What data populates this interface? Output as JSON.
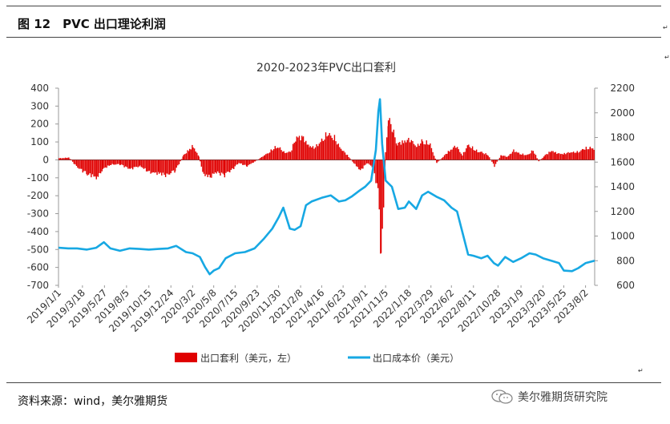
{
  "header": {
    "title": "图 12　PVC 出口理论利润"
  },
  "footer": {
    "source": "资料来源：wind，美尔雅期货",
    "watermark": "美尔雅期货研究院"
  },
  "chart_data": {
    "type": "bar+line",
    "title": "2020-2023年PVC出口套利",
    "left_axis": {
      "min": -700,
      "max": 400,
      "ticks": [
        400,
        300,
        200,
        100,
        0,
        -100,
        -200,
        -300,
        -400,
        -500,
        -600,
        -700
      ]
    },
    "right_axis": {
      "min": 600,
      "max": 2200,
      "ticks": [
        2200,
        2000,
        1800,
        1600,
        1400,
        1200,
        1000,
        800,
        600
      ]
    },
    "x_start": "2019/1/1",
    "x_end": "2023/8/31",
    "x_tick_labels": [
      "2019/1/1",
      "2019/3/18",
      "2019/5/27",
      "2019/8/5",
      "2019/10/15",
      "2019/12/24",
      "2020/3/2",
      "2020/5/8",
      "2020/7/15",
      "2020/9/23",
      "2020/11/30",
      "2021/2/8",
      "2021/4/16",
      "2021/6/23",
      "2021/9/1",
      "2021/11/5",
      "2022/1/18",
      "2022/3/29",
      "2022/6/2",
      "2022/8/11",
      "2022/10/28",
      "2023/1/9",
      "2023/3/20",
      "2023/5/25",
      "2023/8/2"
    ],
    "series": [
      {
        "name": "出口套利（美元，左）",
        "kind": "bar",
        "axis": "left",
        "color": "#e00000",
        "points": [
          [
            "2019/1/1",
            10
          ],
          [
            "2019/2/1",
            15
          ],
          [
            "2019/3/1",
            -50
          ],
          [
            "2019/4/1",
            -90
          ],
          [
            "2019/5/1",
            -120
          ],
          [
            "2019/5/20",
            -60
          ],
          [
            "2019/6/15",
            -30
          ],
          [
            "2019/7/15",
            -30
          ],
          [
            "2019/8/15",
            -60
          ],
          [
            "2019/9/15",
            -40
          ],
          [
            "2019/10/15",
            -80
          ],
          [
            "2019/11/15",
            -90
          ],
          [
            "2019/12/10",
            -100
          ],
          [
            "2020/1/5",
            -70
          ],
          [
            "2020/2/1",
            30
          ],
          [
            "2020/2/20",
            70
          ],
          [
            "2020/3/2",
            90
          ],
          [
            "2020/3/20",
            20
          ],
          [
            "2020/4/5",
            -100
          ],
          [
            "2020/4/25",
            -110
          ],
          [
            "2020/5/15",
            -80
          ],
          [
            "2020/6/10",
            -100
          ],
          [
            "2020/7/5",
            -60
          ],
          [
            "2020/7/25",
            -20
          ],
          [
            "2020/8/20",
            -40
          ],
          [
            "2020/9/15",
            -10
          ],
          [
            "2020/10/15",
            30
          ],
          [
            "2020/11/5",
            60
          ],
          [
            "2020/11/25",
            90
          ],
          [
            "2020/12/15",
            50
          ],
          [
            "2021/1/5",
            50
          ],
          [
            "2021/1/25",
            150
          ],
          [
            "2021/2/15",
            140
          ],
          [
            "2021/3/5",
            90
          ],
          [
            "2021/3/25",
            80
          ],
          [
            "2021/4/15",
            130
          ],
          [
            "2021/5/5",
            170
          ],
          [
            "2021/5/25",
            140
          ],
          [
            "2021/6/15",
            70
          ],
          [
            "2021/7/5",
            30
          ],
          [
            "2021/7/25",
            -20
          ],
          [
            "2021/8/15",
            -70
          ],
          [
            "2021/9/5",
            -20
          ],
          [
            "2021/9/25",
            -50
          ],
          [
            "2021/10/10",
            -200
          ],
          [
            "2021/10/20",
            -600
          ],
          [
            "2021/10/28",
            -350
          ],
          [
            "2021/11/3",
            50
          ],
          [
            "2021/11/12",
            270
          ],
          [
            "2021/11/25",
            200
          ],
          [
            "2021/12/10",
            100
          ],
          [
            "2021/12/30",
            120
          ],
          [
            "2022/1/20",
            130
          ],
          [
            "2022/2/10",
            90
          ],
          [
            "2022/3/1",
            120
          ],
          [
            "2022/3/25",
            100
          ],
          [
            "2022/4/15",
            -20
          ],
          [
            "2022/5/5",
            20
          ],
          [
            "2022/5/25",
            60
          ],
          [
            "2022/6/15",
            90
          ],
          [
            "2022/7/5",
            30
          ],
          [
            "2022/7/25",
            100
          ],
          [
            "2022/8/15",
            60
          ],
          [
            "2022/9/5",
            50
          ],
          [
            "2022/9/25",
            30
          ],
          [
            "2022/10/15",
            -40
          ],
          [
            "2022/11/5",
            30
          ],
          [
            "2022/11/25",
            20
          ],
          [
            "2022/12/15",
            60
          ],
          [
            "2023/1/5",
            40
          ],
          [
            "2023/1/25",
            30
          ],
          [
            "2023/2/15",
            60
          ],
          [
            "2023/3/5",
            -10
          ],
          [
            "2023/3/25",
            30
          ],
          [
            "2023/4/15",
            60
          ],
          [
            "2023/5/5",
            40
          ],
          [
            "2023/5/25",
            40
          ],
          [
            "2023/6/15",
            50
          ],
          [
            "2023/7/5",
            50
          ],
          [
            "2023/7/25",
            70
          ],
          [
            "2023/8/15",
            80
          ],
          [
            "2023/8/31",
            70
          ]
        ]
      },
      {
        "name": "出口成本价（美元）",
        "kind": "line",
        "axis": "right",
        "color": "#17a8e3",
        "points": [
          [
            "2019/1/1",
            905
          ],
          [
            "2019/2/1",
            900
          ],
          [
            "2019/3/1",
            900
          ],
          [
            "2019/4/1",
            890
          ],
          [
            "2019/5/1",
            905
          ],
          [
            "2019/5/25",
            950
          ],
          [
            "2019/6/15",
            900
          ],
          [
            "2019/7/15",
            880
          ],
          [
            "2019/8/15",
            900
          ],
          [
            "2019/9/15",
            895
          ],
          [
            "2019/10/15",
            890
          ],
          [
            "2019/11/15",
            895
          ],
          [
            "2019/12/15",
            900
          ],
          [
            "2020/1/10",
            920
          ],
          [
            "2020/2/10",
            870
          ],
          [
            "2020/3/2",
            860
          ],
          [
            "2020/3/25",
            830
          ],
          [
            "2020/4/10",
            750
          ],
          [
            "2020/4/25",
            690
          ],
          [
            "2020/5/8",
            720
          ],
          [
            "2020/5/25",
            740
          ],
          [
            "2020/6/15",
            820
          ],
          [
            "2020/7/15",
            860
          ],
          [
            "2020/8/15",
            870
          ],
          [
            "2020/9/15",
            900
          ],
          [
            "2020/10/15",
            980
          ],
          [
            "2020/11/10",
            1060
          ],
          [
            "2020/11/30",
            1150
          ],
          [
            "2020/12/15",
            1230
          ],
          [
            "2021/1/5",
            1060
          ],
          [
            "2021/1/20",
            1050
          ],
          [
            "2021/2/8",
            1080
          ],
          [
            "2021/2/25",
            1250
          ],
          [
            "2021/3/15",
            1280
          ],
          [
            "2021/4/16",
            1310
          ],
          [
            "2021/5/15",
            1330
          ],
          [
            "2021/6/10",
            1280
          ],
          [
            "2021/6/30",
            1290
          ],
          [
            "2021/7/20",
            1320
          ],
          [
            "2021/8/15",
            1370
          ],
          [
            "2021/9/1",
            1400
          ],
          [
            "2021/9/20",
            1450
          ],
          [
            "2021/10/5",
            1700
          ],
          [
            "2021/10/13",
            2010
          ],
          [
            "2021/10/18",
            2110
          ],
          [
            "2021/10/25",
            1750
          ],
          [
            "2021/11/5",
            1450
          ],
          [
            "2021/11/25",
            1400
          ],
          [
            "2021/12/15",
            1220
          ],
          [
            "2022/1/5",
            1230
          ],
          [
            "2022/1/18",
            1280
          ],
          [
            "2022/2/10",
            1220
          ],
          [
            "2022/3/1",
            1330
          ],
          [
            "2022/3/20",
            1360
          ],
          [
            "2022/4/15",
            1320
          ],
          [
            "2022/5/10",
            1290
          ],
          [
            "2022/6/2",
            1230
          ],
          [
            "2022/6/20",
            1200
          ],
          [
            "2022/7/10",
            1000
          ],
          [
            "2022/7/25",
            850
          ],
          [
            "2022/8/11",
            840
          ],
          [
            "2022/9/5",
            820
          ],
          [
            "2022/9/25",
            840
          ],
          [
            "2022/10/15",
            780
          ],
          [
            "2022/10/28",
            760
          ],
          [
            "2022/11/20",
            830
          ],
          [
            "2022/12/15",
            790
          ],
          [
            "2023/1/9",
            820
          ],
          [
            "2023/2/5",
            860
          ],
          [
            "2023/2/25",
            850
          ],
          [
            "2023/3/20",
            820
          ],
          [
            "2023/4/15",
            800
          ],
          [
            "2023/5/10",
            780
          ],
          [
            "2023/5/25",
            720
          ],
          [
            "2023/6/20",
            715
          ],
          [
            "2023/7/10",
            740
          ],
          [
            "2023/8/2",
            780
          ],
          [
            "2023/8/31",
            800
          ]
        ]
      }
    ]
  }
}
